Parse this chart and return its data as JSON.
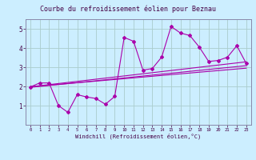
{
  "title": "Courbe du refroidissement éolien pour Beznau",
  "xlabel": "Windchill (Refroidissement éolien,°C)",
  "bg_color": "#cceeff",
  "grid_color": "#aacccc",
  "line_color": "#aa00aa",
  "spine_color": "#8888aa",
  "tick_color": "#440044",
  "xlim": [
    -0.5,
    23.5
  ],
  "ylim": [
    0,
    5.5
  ],
  "yticks": [
    1,
    2,
    3,
    4,
    5
  ],
  "xticks": [
    0,
    1,
    2,
    3,
    4,
    5,
    6,
    7,
    8,
    9,
    10,
    11,
    12,
    13,
    14,
    15,
    16,
    17,
    18,
    19,
    20,
    21,
    22,
    23
  ],
  "series": [
    [
      0,
      1.97
    ],
    [
      1,
      2.18
    ],
    [
      2,
      2.18
    ],
    [
      3,
      1.0
    ],
    [
      4,
      0.65
    ],
    [
      5,
      1.57
    ],
    [
      6,
      1.45
    ],
    [
      7,
      1.37
    ],
    [
      8,
      1.07
    ],
    [
      9,
      1.48
    ],
    [
      10,
      4.55
    ],
    [
      11,
      4.35
    ],
    [
      12,
      2.85
    ],
    [
      13,
      2.93
    ],
    [
      14,
      3.53
    ],
    [
      15,
      5.12
    ],
    [
      16,
      4.78
    ],
    [
      17,
      4.65
    ],
    [
      18,
      4.05
    ],
    [
      19,
      3.3
    ],
    [
      20,
      3.35
    ],
    [
      21,
      3.52
    ],
    [
      22,
      4.12
    ],
    [
      23,
      3.2
    ]
  ],
  "trend_lines": [
    [
      [
        0,
        23
      ],
      [
        1.95,
        3.08
      ]
    ],
    [
      [
        0,
        23
      ],
      [
        1.98,
        3.28
      ]
    ],
    [
      [
        0,
        23
      ],
      [
        1.98,
        2.95
      ]
    ]
  ],
  "title_fontsize": 6,
  "xlabel_fontsize": 5,
  "xtick_fontsize": 4,
  "ytick_fontsize": 5.5
}
